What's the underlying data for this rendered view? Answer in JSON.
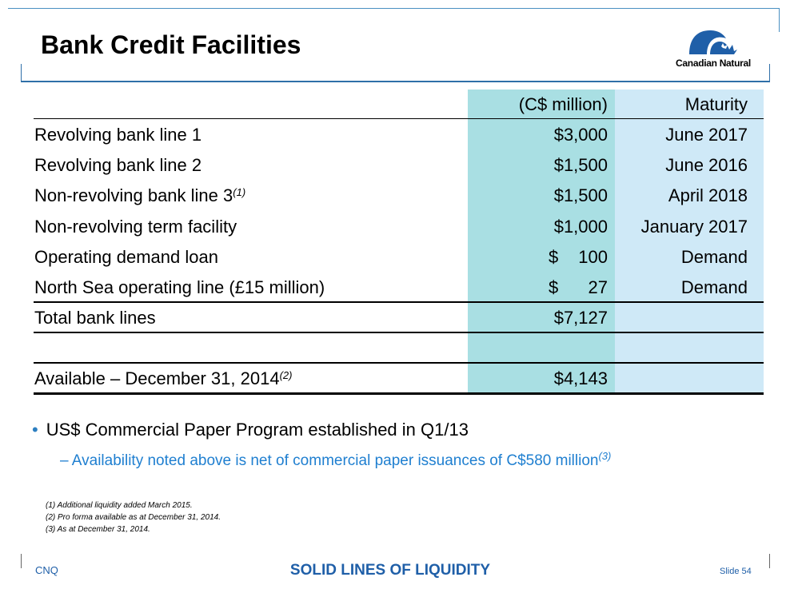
{
  "header": {
    "title": "Bank Credit Facilities"
  },
  "logo": {
    "text": "Canadian Natural"
  },
  "table": {
    "header_amount": "(C$ million)",
    "header_maturity": "Maturity",
    "rows": [
      {
        "label": "Revolving bank line 1",
        "footnote": "",
        "currency": "",
        "amount": "$3,000",
        "maturity": "June 2017"
      },
      {
        "label": "Revolving bank line 2",
        "footnote": "",
        "currency": "",
        "amount": "$1,500",
        "maturity": "June 2016"
      },
      {
        "label": "Non-revolving bank line 3",
        "footnote": "(1)",
        "currency": "",
        "amount": "$1,500",
        "maturity": "April 2018"
      },
      {
        "label": "Non-revolving term facility",
        "footnote": "",
        "currency": "",
        "amount": "$1,000",
        "maturity": "January 2017"
      },
      {
        "label": "Operating demand loan",
        "footnote": "",
        "currency": "$",
        "amount": "100",
        "maturity": "Demand"
      },
      {
        "label": "North Sea operating line (£15 million)",
        "footnote": "",
        "currency": "$",
        "amount": "27",
        "maturity": "Demand"
      }
    ],
    "total": {
      "label": "Total bank lines",
      "amount": "$7,127"
    },
    "available": {
      "label": "Available – December 31, 2014",
      "footnote": "(2)",
      "amount": "$4,143"
    }
  },
  "bullets": {
    "main": "US$ Commercial Paper Program established in Q1/13",
    "sub": "– Availability noted above is net of commercial paper issuances of C$580 million",
    "sub_footnote": "(3)"
  },
  "footnotes": [
    "(1)  Additional liquidity added March 2015.",
    "(2)  Pro forma available as at December 31, 2014.",
    "(3)  As at December 31, 2014."
  ],
  "footer": {
    "left": "CNQ",
    "center": "SOLID LINES OF LIQUIDITY",
    "right": "Slide 54"
  },
  "colors": {
    "amount_column": "#a9dfe3",
    "maturity_column": "#cfe9f7",
    "accent_blue": "#1f5fa8"
  }
}
